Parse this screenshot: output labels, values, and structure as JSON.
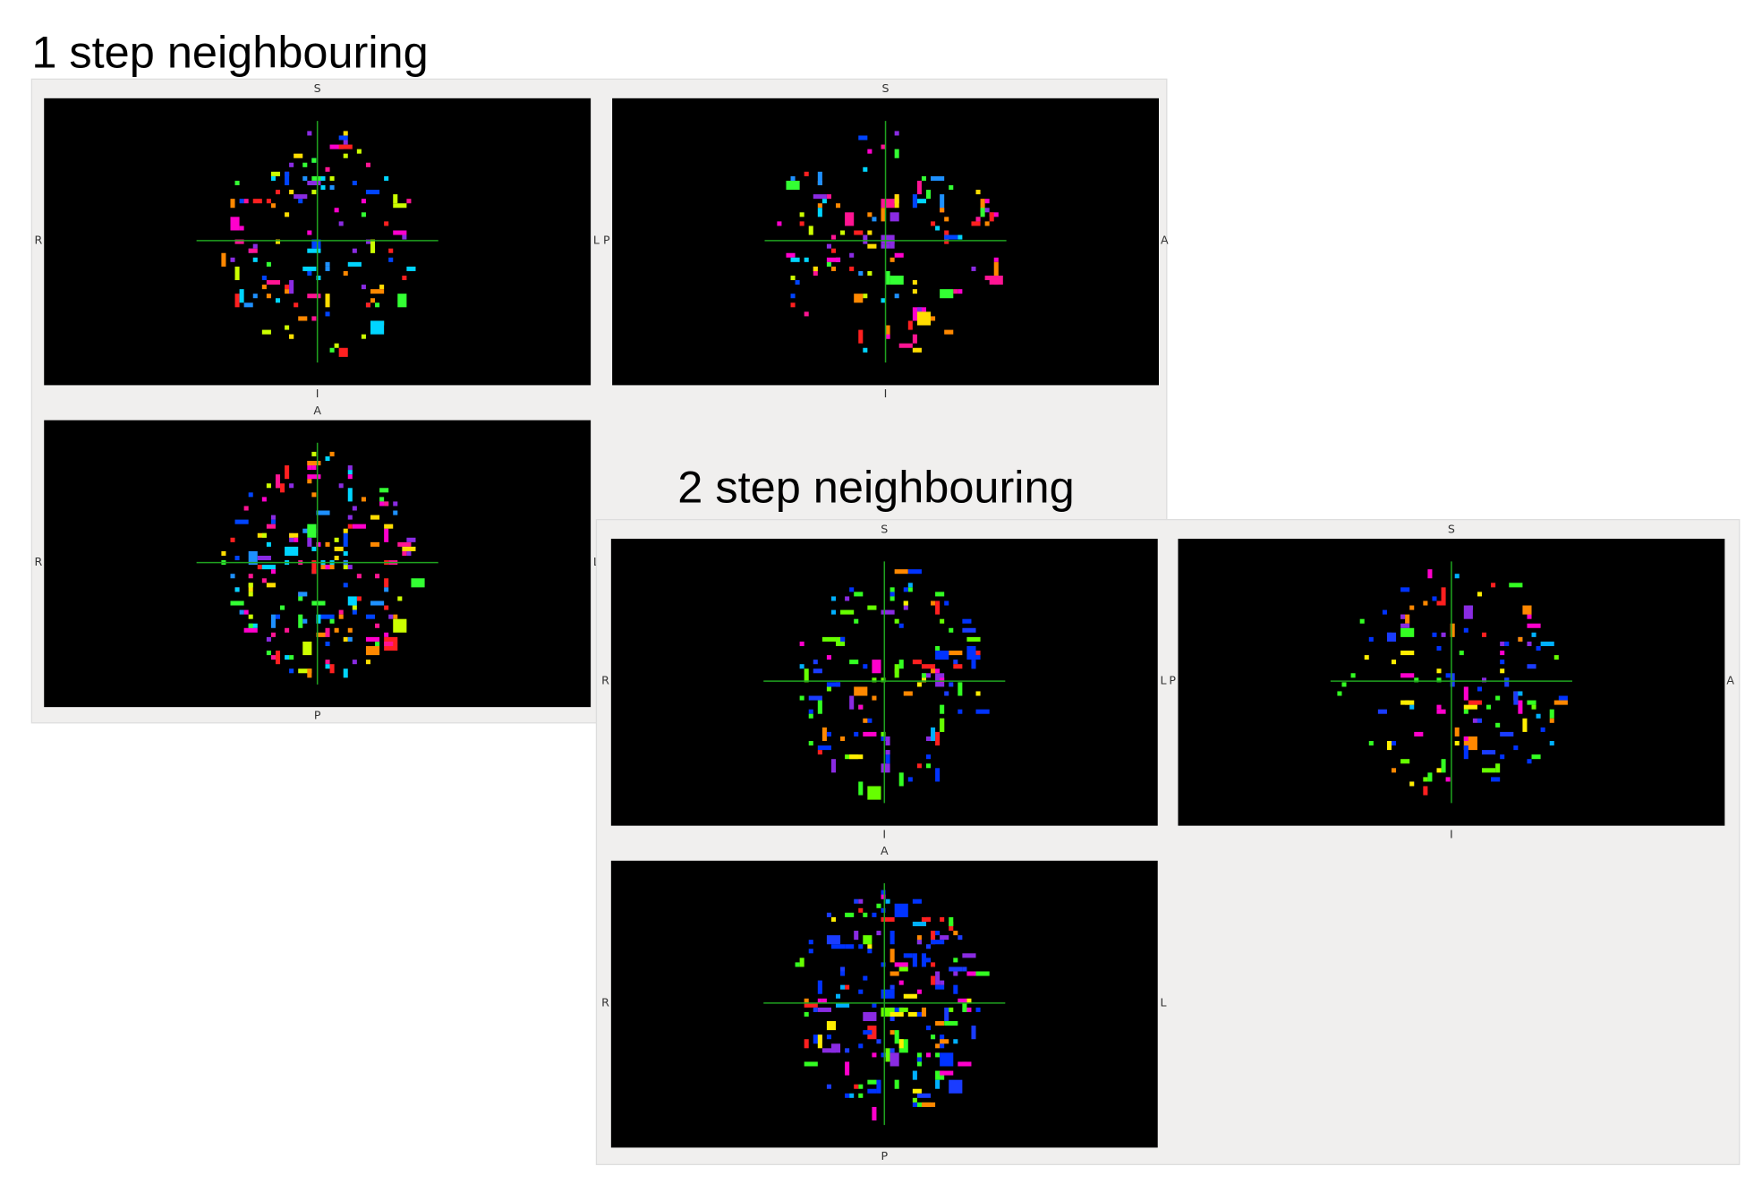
{
  "panels": [
    {
      "title": "1 step neighbouring",
      "views": [
        {
          "top": "S",
          "bottom": "I",
          "left": "R",
          "right": "L"
        },
        {
          "top": "S",
          "bottom": "I",
          "left": "P",
          "right": "A"
        },
        {
          "top": "A",
          "bottom": "P",
          "left": "R",
          "right": "L"
        }
      ]
    },
    {
      "title": "2 step neighbouring",
      "views": [
        {
          "top": "S",
          "bottom": "I",
          "left": "R",
          "right": "L"
        },
        {
          "top": "S",
          "bottom": "I",
          "left": "P",
          "right": "A"
        },
        {
          "top": "A",
          "bottom": "P",
          "left": "R",
          "right": "L"
        }
      ]
    }
  ]
}
